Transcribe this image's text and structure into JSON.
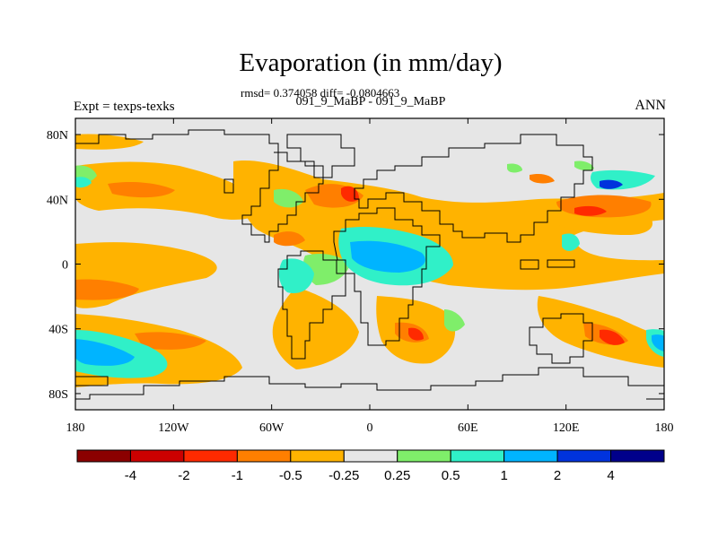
{
  "chart_data": {
    "type": "contour-map",
    "title": "Evaporation (in mm/day)",
    "stats": "rmsd= 0.374058 diff= -0.0804663",
    "expt_label": "Expt = texps-texks",
    "case_label": "091_9_MaBP - 091_9_MaBP",
    "season": "ANN",
    "xlim": [
      -180,
      180
    ],
    "ylim": [
      -90,
      90
    ],
    "x_ticks": [
      {
        "value": -180,
        "label": "180"
      },
      {
        "value": -120,
        "label": "120W"
      },
      {
        "value": -60,
        "label": "60W"
      },
      {
        "value": 0,
        "label": "0"
      },
      {
        "value": 60,
        "label": "60E"
      },
      {
        "value": 120,
        "label": "120E"
      },
      {
        "value": 180,
        "label": "180"
      }
    ],
    "y_ticks": [
      {
        "value": 80,
        "label": "80N"
      },
      {
        "value": 40,
        "label": "40N"
      },
      {
        "value": 0,
        "label": "0"
      },
      {
        "value": -40,
        "label": "40S"
      },
      {
        "value": -80,
        "label": "80S"
      }
    ],
    "colorbar": {
      "colors": [
        "#8b0000",
        "#cc0000",
        "#ff2a00",
        "#ff7f00",
        "#ffb300",
        "#e6e6e6",
        "#7fee6a",
        "#30f0c8",
        "#00b4ff",
        "#0033dd",
        "#00008b"
      ],
      "labels": [
        "-4",
        "-2",
        "-1",
        "-0.5",
        "-0.25",
        "0.25",
        "0.5",
        "1",
        "2",
        "4"
      ]
    }
  }
}
